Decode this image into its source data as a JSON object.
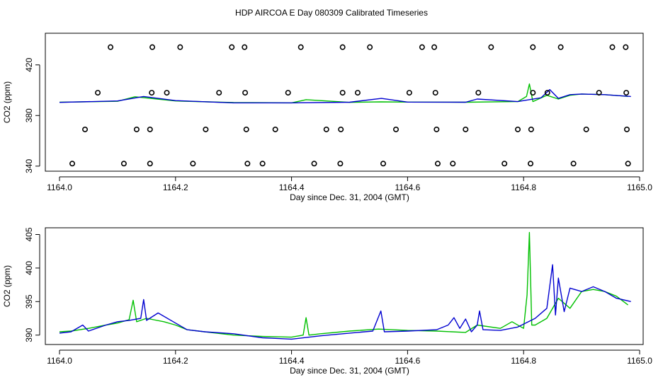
{
  "title": "HDP AIRCOA E  Day 080309  Calibrated Timeseries",
  "colors": {
    "green": "#00c000",
    "blue": "#0000d0",
    "frame": "#000000"
  },
  "chart_data": [
    {
      "type": "scatter",
      "xlabel": "Day since Dec. 31, 2004 (GMT)",
      "ylabel": "CO2 (ppm)",
      "xlim": [
        1164.0,
        1165.0
      ],
      "ylim": [
        336,
        445
      ],
      "xticks": [
        "1164.0",
        "1164.2",
        "1164.4",
        "1164.6",
        "1164.8",
        "1165.0"
      ],
      "yticks": [
        "340",
        "380",
        "420"
      ],
      "grid": false,
      "markers": [
        {
          "x": 1164.088,
          "y": 434
        },
        {
          "x": 1164.16,
          "y": 434
        },
        {
          "x": 1164.208,
          "y": 434
        },
        {
          "x": 1164.297,
          "y": 434
        },
        {
          "x": 1164.319,
          "y": 434
        },
        {
          "x": 1164.416,
          "y": 434
        },
        {
          "x": 1164.488,
          "y": 434
        },
        {
          "x": 1164.535,
          "y": 434
        },
        {
          "x": 1164.625,
          "y": 434
        },
        {
          "x": 1164.646,
          "y": 434
        },
        {
          "x": 1164.744,
          "y": 434
        },
        {
          "x": 1164.816,
          "y": 434
        },
        {
          "x": 1164.864,
          "y": 434
        },
        {
          "x": 1164.953,
          "y": 434
        },
        {
          "x": 1164.976,
          "y": 434
        },
        {
          "x": 1164.066,
          "y": 398
        },
        {
          "x": 1164.159,
          "y": 398
        },
        {
          "x": 1164.185,
          "y": 398
        },
        {
          "x": 1164.275,
          "y": 398
        },
        {
          "x": 1164.32,
          "y": 398
        },
        {
          "x": 1164.394,
          "y": 398
        },
        {
          "x": 1164.488,
          "y": 398
        },
        {
          "x": 1164.514,
          "y": 398
        },
        {
          "x": 1164.603,
          "y": 398
        },
        {
          "x": 1164.648,
          "y": 398
        },
        {
          "x": 1164.722,
          "y": 398
        },
        {
          "x": 1164.816,
          "y": 398
        },
        {
          "x": 1164.841,
          "y": 398
        },
        {
          "x": 1164.93,
          "y": 398
        },
        {
          "x": 1164.977,
          "y": 398
        },
        {
          "x": 1164.044,
          "y": 369
        },
        {
          "x": 1164.133,
          "y": 369
        },
        {
          "x": 1164.156,
          "y": 369
        },
        {
          "x": 1164.252,
          "y": 369
        },
        {
          "x": 1164.322,
          "y": 369
        },
        {
          "x": 1164.372,
          "y": 369
        },
        {
          "x": 1164.46,
          "y": 369
        },
        {
          "x": 1164.485,
          "y": 369
        },
        {
          "x": 1164.58,
          "y": 369
        },
        {
          "x": 1164.65,
          "y": 369
        },
        {
          "x": 1164.7,
          "y": 369
        },
        {
          "x": 1164.79,
          "y": 369
        },
        {
          "x": 1164.813,
          "y": 369
        },
        {
          "x": 1164.908,
          "y": 369
        },
        {
          "x": 1164.978,
          "y": 369
        },
        {
          "x": 1164.022,
          "y": 342
        },
        {
          "x": 1164.111,
          "y": 342
        },
        {
          "x": 1164.156,
          "y": 342
        },
        {
          "x": 1164.23,
          "y": 342
        },
        {
          "x": 1164.324,
          "y": 342
        },
        {
          "x": 1164.35,
          "y": 342
        },
        {
          "x": 1164.439,
          "y": 342
        },
        {
          "x": 1164.484,
          "y": 342
        },
        {
          "x": 1164.558,
          "y": 342
        },
        {
          "x": 1164.652,
          "y": 342
        },
        {
          "x": 1164.678,
          "y": 342
        },
        {
          "x": 1164.767,
          "y": 342
        },
        {
          "x": 1164.812,
          "y": 342
        },
        {
          "x": 1164.886,
          "y": 342
        },
        {
          "x": 1164.98,
          "y": 342
        }
      ],
      "series": [
        {
          "color": "#00c000",
          "x": [
            1164.0,
            1164.1,
            1164.13,
            1164.2,
            1164.3,
            1164.4,
            1164.425,
            1164.5,
            1164.554,
            1164.6,
            1164.7,
            1164.79,
            1164.805,
            1164.81,
            1164.816,
            1164.84,
            1164.86,
            1164.88,
            1164.9,
            1164.94,
            1164.97,
            1164.98
          ],
          "y": [
            390.5,
            391.2,
            394.8,
            391.5,
            390.2,
            390.0,
            392.5,
            390.4,
            390.8,
            390.6,
            390.5,
            391.0,
            395.0,
            405.0,
            391.0,
            396.0,
            393.0,
            396.0,
            397.0,
            396.5,
            395.5,
            395.0
          ]
        },
        {
          "color": "#0000d0",
          "x": [
            1164.0,
            1164.1,
            1164.145,
            1164.2,
            1164.3,
            1164.4,
            1164.5,
            1164.555,
            1164.6,
            1164.7,
            1164.72,
            1164.79,
            1164.83,
            1164.845,
            1164.86,
            1164.88,
            1164.9,
            1164.94,
            1164.97,
            1164.985
          ],
          "y": [
            390.4,
            391.5,
            395.0,
            391.8,
            390.0,
            390.0,
            390.5,
            393.5,
            390.6,
            390.5,
            393.0,
            391.0,
            394.0,
            400.5,
            393.5,
            396.5,
            397.0,
            396.5,
            395.5,
            395.0
          ]
        }
      ]
    },
    {
      "type": "line",
      "xlabel": "Day since Dec. 31, 2004 (GMT)",
      "ylabel": "CO2 (ppm)",
      "xlim": [
        1164.0,
        1165.0
      ],
      "ylim": [
        388.6,
        406.0
      ],
      "xticks": [
        "1164.0",
        "1164.2",
        "1164.4",
        "1164.6",
        "1164.8",
        "1165.0"
      ],
      "yticks": [
        "390",
        "395",
        "400",
        "405"
      ],
      "grid": false,
      "series": [
        {
          "color": "#00c000",
          "x": [
            1164.0,
            1164.02,
            1164.05,
            1164.08,
            1164.1,
            1164.12,
            1164.127,
            1164.133,
            1164.15,
            1164.18,
            1164.2,
            1164.22,
            1164.25,
            1164.3,
            1164.35,
            1164.4,
            1164.42,
            1164.425,
            1164.43,
            1164.45,
            1164.5,
            1164.55,
            1164.6,
            1164.65,
            1164.7,
            1164.72,
            1164.76,
            1164.78,
            1164.8,
            1164.806,
            1164.81,
            1164.814,
            1164.82,
            1164.84,
            1164.86,
            1164.88,
            1164.9,
            1164.92,
            1164.94,
            1164.96,
            1164.98
          ],
          "y": [
            390.5,
            390.6,
            391.0,
            391.5,
            391.8,
            392.3,
            395.2,
            392.0,
            392.5,
            392.0,
            391.5,
            390.8,
            390.5,
            390.0,
            389.8,
            389.7,
            390.0,
            392.6,
            390.0,
            390.2,
            390.6,
            390.9,
            390.7,
            390.6,
            390.4,
            391.5,
            391.0,
            392.0,
            391.0,
            396.0,
            405.3,
            391.5,
            391.5,
            392.5,
            395.5,
            394.0,
            396.5,
            396.8,
            396.5,
            395.8,
            394.5
          ]
        },
        {
          "color": "#0000d0",
          "x": [
            1164.0,
            1164.02,
            1164.04,
            1164.05,
            1164.08,
            1164.1,
            1164.12,
            1164.14,
            1164.145,
            1164.15,
            1164.17,
            1164.2,
            1164.22,
            1164.25,
            1164.3,
            1164.35,
            1164.4,
            1164.45,
            1164.5,
            1164.54,
            1164.554,
            1164.56,
            1164.6,
            1164.65,
            1164.67,
            1164.68,
            1164.69,
            1164.7,
            1164.71,
            1164.72,
            1164.724,
            1164.73,
            1164.76,
            1164.79,
            1164.82,
            1164.84,
            1164.85,
            1164.855,
            1164.86,
            1164.87,
            1164.88,
            1164.9,
            1164.92,
            1164.94,
            1164.96,
            1164.985
          ],
          "y": [
            390.3,
            390.5,
            391.5,
            390.6,
            391.5,
            392.0,
            392.2,
            392.5,
            395.3,
            392.2,
            393.3,
            391.8,
            390.8,
            390.5,
            390.2,
            389.6,
            389.4,
            389.9,
            390.3,
            390.6,
            393.6,
            390.5,
            390.6,
            390.8,
            391.5,
            392.6,
            391.0,
            392.4,
            390.5,
            391.5,
            393.6,
            390.8,
            390.7,
            391.2,
            392.5,
            394.0,
            400.5,
            393.0,
            398.5,
            393.5,
            397.0,
            396.5,
            397.2,
            396.5,
            395.5,
            395.0
          ]
        }
      ]
    }
  ]
}
